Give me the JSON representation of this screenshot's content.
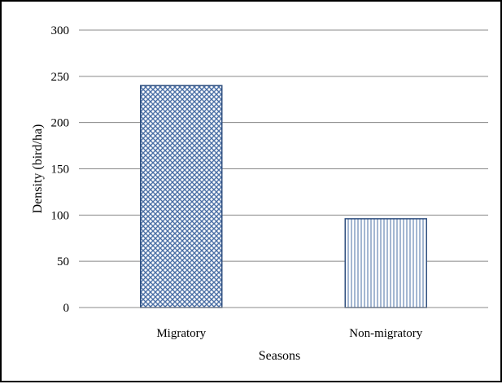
{
  "chart_data": {
    "type": "bar",
    "categories": [
      "Migratory",
      "Non-migratory"
    ],
    "values": [
      240,
      96
    ],
    "title": "",
    "xlabel": "Seasons",
    "ylabel": "Density (bird/ha)",
    "ylim": [
      0,
      300
    ],
    "yticks": [
      "0",
      "50",
      "100",
      "150",
      "200",
      "250",
      "300"
    ],
    "grid": true,
    "legend": "none",
    "bar_fills": [
      "crosshatch-blue",
      "vertical-lines-blue"
    ],
    "colors": {
      "bar_stroke": "#2F4F7F",
      "pattern": "#4A6FA5",
      "grid": "#888888"
    }
  }
}
